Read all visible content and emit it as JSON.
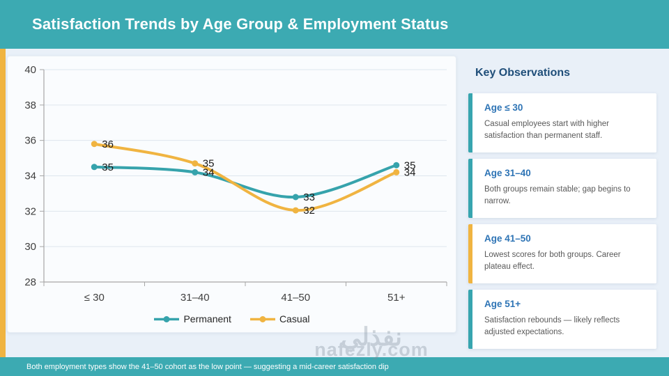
{
  "header": {
    "title": "Satisfaction Trends by Age Group & Employment Status"
  },
  "chart_data": {
    "type": "line",
    "title": "",
    "xlabel": "",
    "ylabel": "",
    "categories": [
      "≤ 30",
      "31–40",
      "41–50",
      "51+"
    ],
    "series": [
      {
        "name": "Permanent",
        "color": "#36A3AC",
        "values": [
          35,
          34,
          33,
          35
        ],
        "plotted": [
          34.5,
          34.2,
          32.8,
          34.6
        ]
      },
      {
        "name": "Casual",
        "color": "#F0B441",
        "values": [
          36,
          35,
          32,
          34
        ],
        "plotted": [
          35.8,
          34.7,
          32.05,
          34.2
        ]
      }
    ],
    "ylim": [
      28,
      40
    ],
    "yticks": [
      28,
      30,
      32,
      34,
      36,
      38,
      40
    ],
    "grid": true,
    "legend_position": "bottom"
  },
  "observations": {
    "title": "Key Observations",
    "cards": [
      {
        "title": "Age ≤ 30",
        "accent": "#37A5AF",
        "body": "Casual employees start with higher satisfaction than permanent staff."
      },
      {
        "title": "Age 31–40",
        "accent": "#37A5AF",
        "body": "Both groups remain stable; gap begins to narrow."
      },
      {
        "title": "Age 41–50",
        "accent": "#F0B441",
        "body": "Lowest scores for both groups. Career plateau effect."
      },
      {
        "title": "Age 51+",
        "accent": "#37A5AF",
        "body": "Satisfaction rebounds — likely reflects adjusted expectations."
      }
    ]
  },
  "footer": {
    "text": "Both employment types show the 41–50 cohort as the low point — suggesting a mid-career satisfaction dip"
  },
  "watermark": {
    "arabic": "نفذلي",
    "domain": "nafezly.com"
  },
  "colors": {
    "brand_teal": "#3CAAB2",
    "accent_yellow": "#F0B441",
    "heading_navy": "#1F4E79",
    "card_title_blue": "#2E74B5",
    "body_gray": "#595959",
    "gridline": "#DEE6ED",
    "axis": "#A6A6A6",
    "tick_label": "#3F3F3F",
    "data_label": "#1A1A1A"
  }
}
